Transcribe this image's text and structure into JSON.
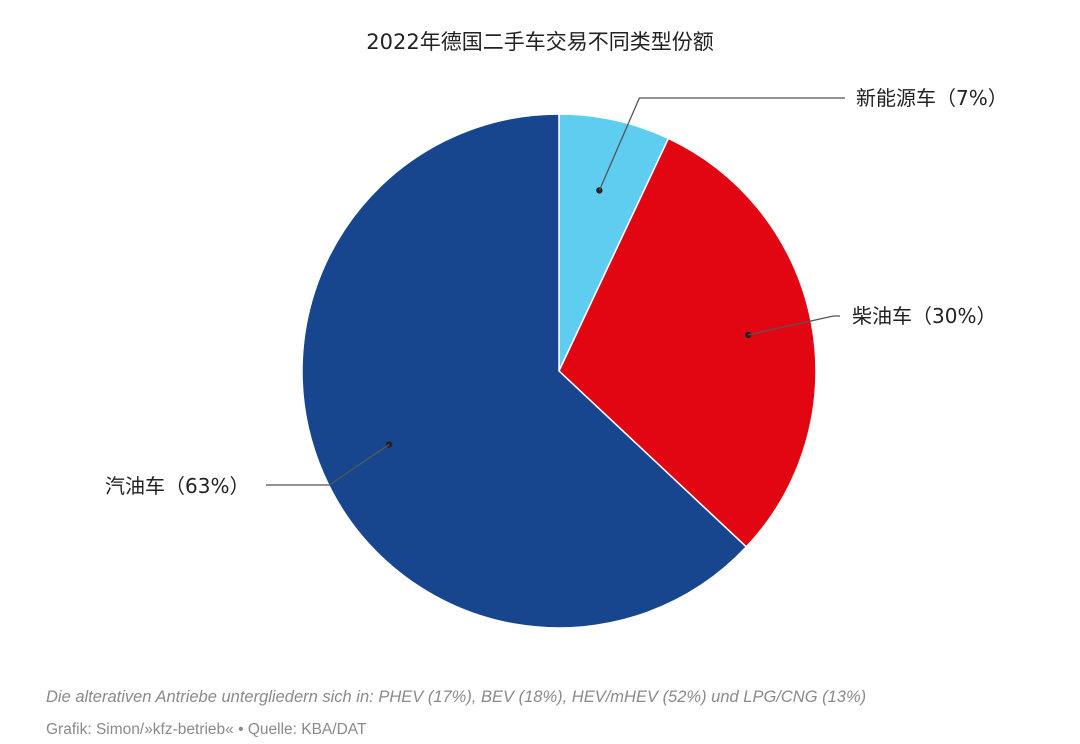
{
  "chart_data": {
    "type": "pie",
    "title": "2022年德国二手车交易不同类型份额",
    "slices": [
      {
        "label": "新能源车（7%）",
        "value": 7,
        "color": "#5ecdf0"
      },
      {
        "label": "柴油车（30%）",
        "value": 30,
        "color": "#e20613"
      },
      {
        "label": "汽油车（63%）",
        "value": 63,
        "color": "#17468e"
      }
    ],
    "start_angle_deg": 0,
    "direction": "clockwise"
  },
  "footer": {
    "note": "Die alterativen Antriebe untergliedern sich in: PHEV (17%), BEV (18%), HEV/mHEV (52%) und LPG/CNG (13%)",
    "credit": "Grafik: Simon/»kfz-betrieb« • Quelle: KBA/DAT"
  }
}
